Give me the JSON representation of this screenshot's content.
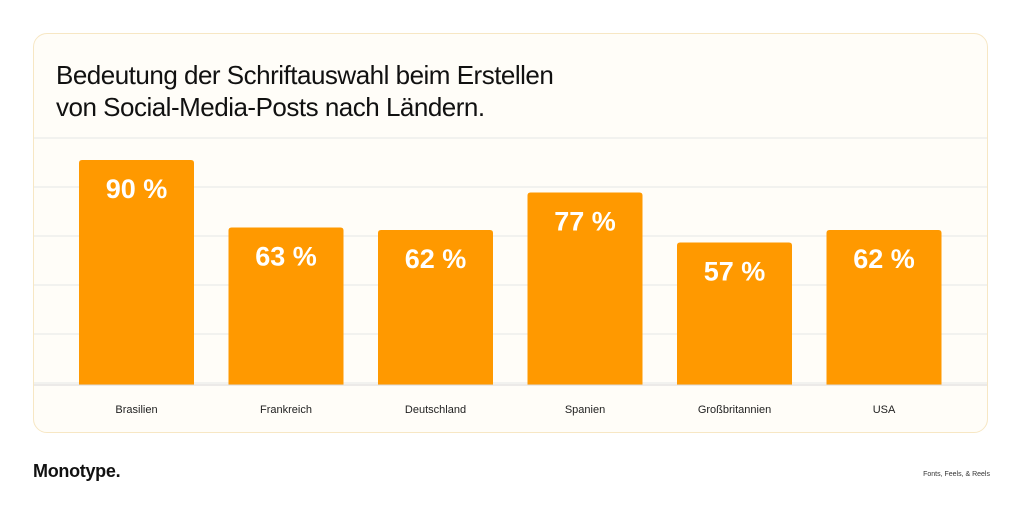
{
  "chart_data": {
    "type": "bar",
    "title_lines": [
      "Bedeutung der Schriftauswahl beim Erstellen",
      "von Social-Media-Posts nach Ländern."
    ],
    "categories": [
      "Brasilien",
      "Frankreich",
      "Deutschland",
      "Spanien",
      "Großbritannien",
      "USA"
    ],
    "values": [
      90,
      63,
      62,
      77,
      57,
      62
    ],
    "value_labels": [
      "90 %",
      "63 %",
      "62 %",
      "77 %",
      "57 %",
      "62 %"
    ],
    "unit": "%",
    "ylim": [
      0,
      100
    ],
    "grid": true,
    "legend": "none",
    "bar_color": "#ff9900",
    "grid_color": "#e6e6e6"
  },
  "footer": {
    "brand": "Monotype.",
    "tagline": "Fonts, Feels, & Reels"
  }
}
